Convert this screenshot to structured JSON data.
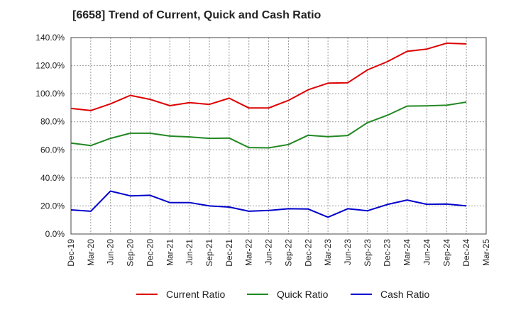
{
  "chart_data": {
    "type": "line",
    "title": "[6658]  Trend of Current, Quick and Cash Ratio",
    "xlabel": "",
    "ylabel": "",
    "ylim": [
      0,
      140
    ],
    "y_ticks": [
      0,
      20,
      40,
      60,
      80,
      100,
      120,
      140
    ],
    "y_tick_labels": [
      "0.0%",
      "20.0%",
      "40.0%",
      "60.0%",
      "80.0%",
      "100.0%",
      "120.0%",
      "140.0%"
    ],
    "tick_labels": [
      "Dec-19",
      "Mar-20",
      "Jun-20",
      "Sep-20",
      "Dec-20",
      "Mar-21",
      "Jun-21",
      "Sep-21",
      "Dec-21",
      "Mar-22",
      "Jun-22",
      "Sep-22",
      "Dec-22",
      "Mar-23",
      "Jun-23",
      "Sep-23",
      "Dec-23",
      "Mar-24",
      "Jun-24",
      "Sep-24",
      "Dec-24",
      "Mar-25"
    ],
    "categories": [
      "Dec-19",
      "Mar-20",
      "Jun-20",
      "Sep-20",
      "Dec-20",
      "Mar-21",
      "Jun-21",
      "Sep-21",
      "Dec-21",
      "Mar-22",
      "Jun-22",
      "Sep-22",
      "Dec-22",
      "Mar-23",
      "Jun-23",
      "Sep-23",
      "Dec-23",
      "Mar-24",
      "Jun-24",
      "Sep-24",
      "Dec-24"
    ],
    "grid": true,
    "legend_position": "bottom",
    "series": [
      {
        "name": "Current Ratio",
        "color": "#dd0000",
        "values": [
          89.5,
          88.0,
          92.8,
          98.8,
          96.0,
          91.5,
          93.6,
          92.4,
          96.8,
          89.8,
          89.8,
          95.2,
          102.8,
          107.5,
          107.8,
          117.0,
          122.8,
          130.2,
          131.8,
          136.0,
          135.5
        ]
      },
      {
        "name": "Quick Ratio",
        "color": "#228822",
        "values": [
          64.8,
          63.0,
          68.2,
          71.8,
          71.8,
          69.8,
          69.2,
          68.2,
          68.4,
          61.6,
          61.4,
          63.8,
          70.4,
          69.4,
          70.2,
          79.4,
          84.6,
          91.2,
          91.4,
          91.8,
          94.0
        ]
      },
      {
        "name": "Cash Ratio",
        "color": "#0000cc",
        "values": [
          17.2,
          16.2,
          30.6,
          27.2,
          27.6,
          22.4,
          22.4,
          20.0,
          19.2,
          16.2,
          16.8,
          18.0,
          17.8,
          12.0,
          18.0,
          16.6,
          21.0,
          24.2,
          21.2,
          21.4,
          20.0
        ]
      }
    ]
  }
}
